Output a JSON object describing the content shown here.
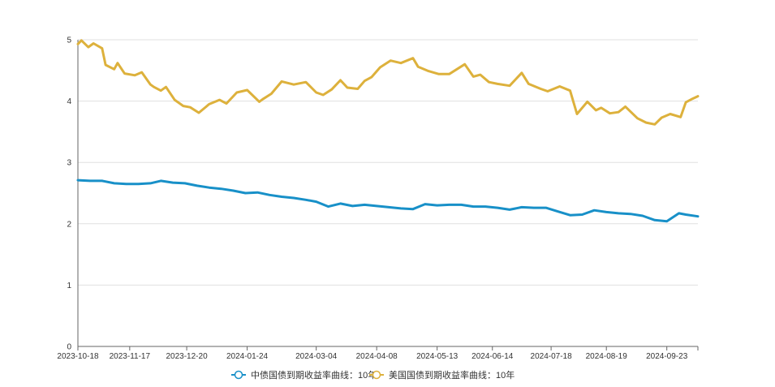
{
  "chart_data": {
    "type": "line",
    "title": "",
    "xlabel": "",
    "ylabel": "",
    "ylim": [
      0,
      5
    ],
    "yticks": [
      0,
      1,
      2,
      3,
      4,
      5
    ],
    "grid": "horizontal",
    "legend_position": "bottom-center",
    "x_ticks": [
      "2023-10-18",
      "2023-11-17",
      "2023-12-20",
      "2024-01-24",
      "2024-03-04",
      "2024-04-08",
      "2024-05-13",
      "2024-06-14",
      "2024-07-18",
      "2024-08-19",
      "2024-09-23"
    ],
    "series": [
      {
        "name": "中债国债到期收益率曲线：10年",
        "color": "#1890c8",
        "points": [
          [
            "2023-10-18",
            2.71
          ],
          [
            "2023-10-25",
            2.7
          ],
          [
            "2023-11-01",
            2.7
          ],
          [
            "2023-11-08",
            2.66
          ],
          [
            "2023-11-15",
            2.65
          ],
          [
            "2023-11-22",
            2.65
          ],
          [
            "2023-11-29",
            2.66
          ],
          [
            "2023-12-05",
            2.7
          ],
          [
            "2023-12-12",
            2.67
          ],
          [
            "2023-12-19",
            2.66
          ],
          [
            "2023-12-26",
            2.62
          ],
          [
            "2024-01-02",
            2.59
          ],
          [
            "2024-01-09",
            2.57
          ],
          [
            "2024-01-16",
            2.54
          ],
          [
            "2024-01-23",
            2.5
          ],
          [
            "2024-01-30",
            2.51
          ],
          [
            "2024-02-06",
            2.47
          ],
          [
            "2024-02-13",
            2.44
          ],
          [
            "2024-02-20",
            2.42
          ],
          [
            "2024-02-27",
            2.39
          ],
          [
            "2024-03-04",
            2.36
          ],
          [
            "2024-03-11",
            2.28
          ],
          [
            "2024-03-18",
            2.33
          ],
          [
            "2024-03-25",
            2.29
          ],
          [
            "2024-04-01",
            2.31
          ],
          [
            "2024-04-08",
            2.29
          ],
          [
            "2024-04-15",
            2.27
          ],
          [
            "2024-04-22",
            2.25
          ],
          [
            "2024-04-29",
            2.24
          ],
          [
            "2024-05-06",
            2.32
          ],
          [
            "2024-05-13",
            2.3
          ],
          [
            "2024-05-20",
            2.31
          ],
          [
            "2024-05-27",
            2.31
          ],
          [
            "2024-06-03",
            2.28
          ],
          [
            "2024-06-10",
            2.28
          ],
          [
            "2024-06-17",
            2.26
          ],
          [
            "2024-06-24",
            2.23
          ],
          [
            "2024-07-01",
            2.27
          ],
          [
            "2024-07-08",
            2.26
          ],
          [
            "2024-07-15",
            2.26
          ],
          [
            "2024-07-22",
            2.2
          ],
          [
            "2024-07-29",
            2.14
          ],
          [
            "2024-08-05",
            2.15
          ],
          [
            "2024-08-12",
            2.22
          ],
          [
            "2024-08-19",
            2.19
          ],
          [
            "2024-08-26",
            2.17
          ],
          [
            "2024-09-02",
            2.16
          ],
          [
            "2024-09-09",
            2.13
          ],
          [
            "2024-09-16",
            2.06
          ],
          [
            "2024-09-23",
            2.04
          ],
          [
            "2024-09-30",
            2.17
          ],
          [
            "2024-10-04",
            2.15
          ],
          [
            "2024-10-11",
            2.12
          ]
        ]
      },
      {
        "name": "美国国债到期收益率曲线：10年",
        "color": "#ddb13c",
        "points": [
          [
            "2023-10-18",
            4.93
          ],
          [
            "2023-10-20",
            4.99
          ],
          [
            "2023-10-24",
            4.88
          ],
          [
            "2023-10-27",
            4.94
          ],
          [
            "2023-11-01",
            4.86
          ],
          [
            "2023-11-03",
            4.59
          ],
          [
            "2023-11-08",
            4.52
          ],
          [
            "2023-11-10",
            4.62
          ],
          [
            "2023-11-14",
            4.45
          ],
          [
            "2023-11-20",
            4.42
          ],
          [
            "2023-11-24",
            4.47
          ],
          [
            "2023-11-29",
            4.27
          ],
          [
            "2023-12-01",
            4.23
          ],
          [
            "2023-12-05",
            4.17
          ],
          [
            "2023-12-08",
            4.23
          ],
          [
            "2023-12-13",
            4.02
          ],
          [
            "2023-12-18",
            3.92
          ],
          [
            "2023-12-22",
            3.9
          ],
          [
            "2023-12-27",
            3.81
          ],
          [
            "2024-01-02",
            3.95
          ],
          [
            "2024-01-08",
            4.02
          ],
          [
            "2024-01-12",
            3.96
          ],
          [
            "2024-01-18",
            4.14
          ],
          [
            "2024-01-24",
            4.18
          ],
          [
            "2024-01-31",
            3.99
          ],
          [
            "2024-02-02",
            4.03
          ],
          [
            "2024-02-07",
            4.12
          ],
          [
            "2024-02-13",
            4.32
          ],
          [
            "2024-02-20",
            4.27
          ],
          [
            "2024-02-27",
            4.31
          ],
          [
            "2024-03-04",
            4.14
          ],
          [
            "2024-03-08",
            4.1
          ],
          [
            "2024-03-13",
            4.19
          ],
          [
            "2024-03-18",
            4.34
          ],
          [
            "2024-03-22",
            4.22
          ],
          [
            "2024-03-28",
            4.2
          ],
          [
            "2024-04-01",
            4.33
          ],
          [
            "2024-04-05",
            4.39
          ],
          [
            "2024-04-10",
            4.55
          ],
          [
            "2024-04-16",
            4.66
          ],
          [
            "2024-04-22",
            4.62
          ],
          [
            "2024-04-29",
            4.7
          ],
          [
            "2024-05-02",
            4.56
          ],
          [
            "2024-05-08",
            4.49
          ],
          [
            "2024-05-14",
            4.44
          ],
          [
            "2024-05-20",
            4.44
          ],
          [
            "2024-05-29",
            4.6
          ],
          [
            "2024-06-03",
            4.4
          ],
          [
            "2024-06-07",
            4.43
          ],
          [
            "2024-06-12",
            4.31
          ],
          [
            "2024-06-17",
            4.28
          ],
          [
            "2024-06-24",
            4.25
          ],
          [
            "2024-07-01",
            4.46
          ],
          [
            "2024-07-05",
            4.28
          ],
          [
            "2024-07-12",
            4.2
          ],
          [
            "2024-07-16",
            4.16
          ],
          [
            "2024-07-23",
            4.24
          ],
          [
            "2024-07-29",
            4.17
          ],
          [
            "2024-08-02",
            3.79
          ],
          [
            "2024-08-08",
            3.99
          ],
          [
            "2024-08-13",
            3.85
          ],
          [
            "2024-08-16",
            3.89
          ],
          [
            "2024-08-21",
            3.8
          ],
          [
            "2024-08-26",
            3.82
          ],
          [
            "2024-08-30",
            3.91
          ],
          [
            "2024-09-06",
            3.72
          ],
          [
            "2024-09-11",
            3.65
          ],
          [
            "2024-09-16",
            3.62
          ],
          [
            "2024-09-20",
            3.73
          ],
          [
            "2024-09-25",
            3.79
          ],
          [
            "2024-10-01",
            3.74
          ],
          [
            "2024-10-04",
            3.98
          ],
          [
            "2024-10-08",
            4.04
          ],
          [
            "2024-10-11",
            4.08
          ]
        ]
      }
    ]
  }
}
